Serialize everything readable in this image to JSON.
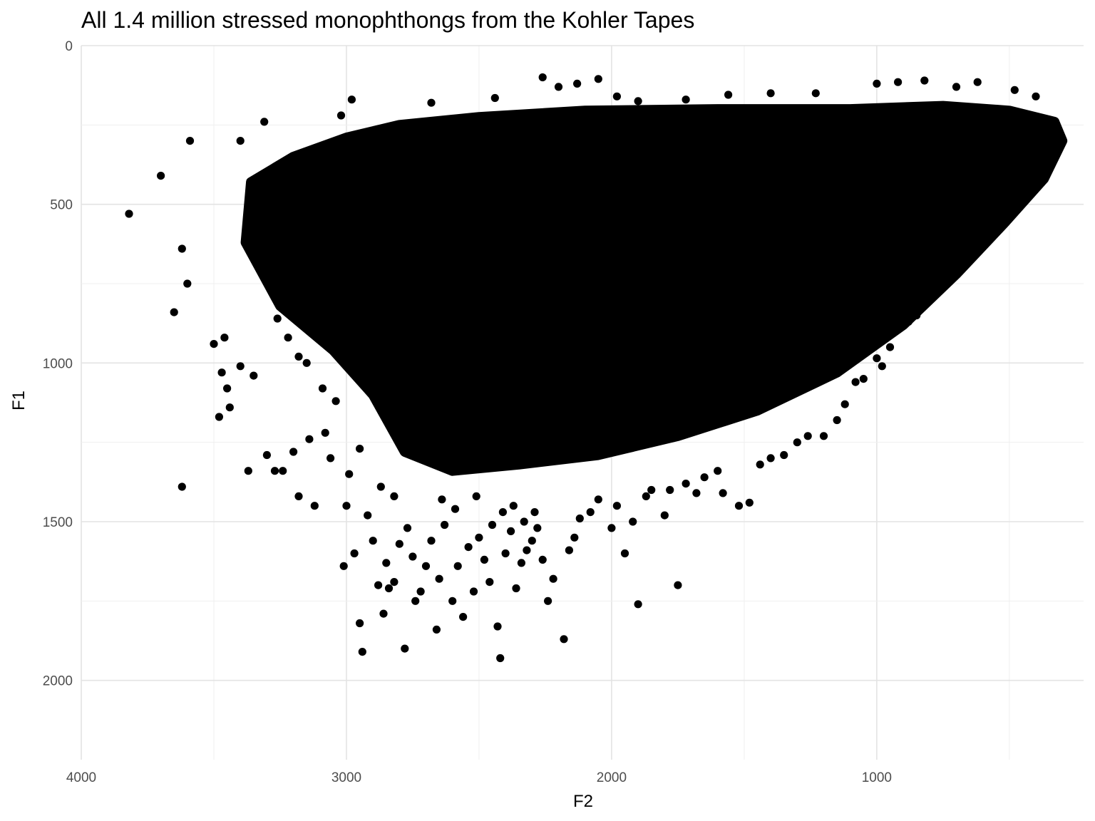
{
  "chart_data": {
    "type": "scatter",
    "title": "All 1.4 million stressed monophthongs from the Kohler Tapes",
    "xlabel": "F2",
    "ylabel": "F1",
    "x_reversed": true,
    "y_reversed": true,
    "xlim": [
      4000,
      220
    ],
    "ylim": [
      0,
      2250
    ],
    "x_ticks": [
      4000,
      3000,
      2000,
      1000
    ],
    "x_tick_labels": [
      "4000",
      "3000",
      "2000",
      "1000"
    ],
    "y_ticks": [
      0,
      500,
      1000,
      1500,
      2000
    ],
    "y_tick_labels": [
      "0",
      "500",
      "1000",
      "1500",
      "2000"
    ],
    "grid": true,
    "point_color": "#000000",
    "dense_region_outline": [
      [
        3360,
        430
      ],
      [
        3200,
        350
      ],
      [
        3000,
        290
      ],
      [
        2800,
        250
      ],
      [
        2500,
        225
      ],
      [
        2100,
        205
      ],
      [
        1600,
        200
      ],
      [
        1100,
        200
      ],
      [
        750,
        190
      ],
      [
        500,
        205
      ],
      [
        330,
        240
      ],
      [
        300,
        300
      ],
      [
        370,
        420
      ],
      [
        520,
        560
      ],
      [
        700,
        720
      ],
      [
        900,
        880
      ],
      [
        1150,
        1030
      ],
      [
        1450,
        1150
      ],
      [
        1750,
        1230
      ],
      [
        2050,
        1290
      ],
      [
        2350,
        1320
      ],
      [
        2600,
        1340
      ],
      [
        2780,
        1280
      ],
      [
        2900,
        1100
      ],
      [
        3050,
        960
      ],
      [
        3250,
        820
      ],
      [
        3380,
        620
      ]
    ],
    "points": [
      [
        3820,
        530
      ],
      [
        3700,
        410
      ],
      [
        3650,
        840
      ],
      [
        3620,
        1390
      ],
      [
        3620,
        640
      ],
      [
        3600,
        750
      ],
      [
        3590,
        300
      ],
      [
        3500,
        940
      ],
      [
        3480,
        1170
      ],
      [
        3470,
        1030
      ],
      [
        3460,
        920
      ],
      [
        3450,
        1080
      ],
      [
        3440,
        1140
      ],
      [
        3400,
        1010
      ],
      [
        3370,
        1340
      ],
      [
        3350,
        1040
      ],
      [
        3300,
        1290
      ],
      [
        3270,
        1340
      ],
      [
        3240,
        1340
      ],
      [
        3200,
        1280
      ],
      [
        3180,
        1420
      ],
      [
        3140,
        1240
      ],
      [
        3120,
        1450
      ],
      [
        3080,
        1220
      ],
      [
        3060,
        1300
      ],
      [
        3040,
        1120
      ],
      [
        3010,
        1640
      ],
      [
        3000,
        1450
      ],
      [
        2990,
        1350
      ],
      [
        2970,
        1600
      ],
      [
        2950,
        1820
      ],
      [
        2950,
        1270
      ],
      [
        2940,
        1910
      ],
      [
        2920,
        1480
      ],
      [
        2900,
        1560
      ],
      [
        2880,
        1700
      ],
      [
        2860,
        1790
      ],
      [
        2850,
        1630
      ],
      [
        2840,
        1710
      ],
      [
        2820,
        1690
      ],
      [
        2800,
        1570
      ],
      [
        2780,
        1900
      ],
      [
        2770,
        1520
      ],
      [
        2750,
        1610
      ],
      [
        2740,
        1750
      ],
      [
        2720,
        1720
      ],
      [
        2700,
        1640
      ],
      [
        2680,
        1560
      ],
      [
        2660,
        1840
      ],
      [
        2650,
        1680
      ],
      [
        2630,
        1510
      ],
      [
        2600,
        1750
      ],
      [
        2580,
        1640
      ],
      [
        2560,
        1800
      ],
      [
        2540,
        1580
      ],
      [
        2520,
        1720
      ],
      [
        2500,
        1550
      ],
      [
        2480,
        1620
      ],
      [
        2460,
        1690
      ],
      [
        2430,
        1830
      ],
      [
        2420,
        1930
      ],
      [
        2400,
        1600
      ],
      [
        2380,
        1530
      ],
      [
        2360,
        1710
      ],
      [
        2340,
        1630
      ],
      [
        2320,
        1590
      ],
      [
        2300,
        1560
      ],
      [
        2280,
        1520
      ],
      [
        2260,
        1620
      ],
      [
        2240,
        1750
      ],
      [
        2220,
        1680
      ],
      [
        2180,
        1870
      ],
      [
        2160,
        1590
      ],
      [
        2140,
        1550
      ],
      [
        2120,
        1490
      ],
      [
        2080,
        1470
      ],
      [
        2050,
        1430
      ],
      [
        2000,
        1520
      ],
      [
        1980,
        1450
      ],
      [
        1950,
        1600
      ],
      [
        1920,
        1500
      ],
      [
        1900,
        1760
      ],
      [
        1870,
        1420
      ],
      [
        1850,
        1400
      ],
      [
        1800,
        1480
      ],
      [
        1780,
        1400
      ],
      [
        1750,
        1700
      ],
      [
        1720,
        1380
      ],
      [
        1680,
        1410
      ],
      [
        1650,
        1360
      ],
      [
        1600,
        1340
      ],
      [
        1580,
        1410
      ],
      [
        1520,
        1450
      ],
      [
        1480,
        1440
      ],
      [
        1440,
        1320
      ],
      [
        1400,
        1300
      ],
      [
        1350,
        1290
      ],
      [
        1300,
        1250
      ],
      [
        1260,
        1230
      ],
      [
        1200,
        1230
      ],
      [
        1150,
        1180
      ],
      [
        1120,
        1130
      ],
      [
        1080,
        1060
      ],
      [
        1050,
        1050
      ],
      [
        1000,
        985
      ],
      [
        980,
        1010
      ],
      [
        950,
        950
      ],
      [
        920,
        880
      ],
      [
        880,
        870
      ],
      [
        850,
        850
      ],
      [
        820,
        780
      ],
      [
        780,
        760
      ],
      [
        750,
        720
      ],
      [
        700,
        680
      ],
      [
        650,
        640
      ],
      [
        620,
        600
      ],
      [
        580,
        560
      ],
      [
        550,
        540
      ],
      [
        500,
        500
      ],
      [
        480,
        470
      ],
      [
        460,
        390
      ],
      [
        430,
        340
      ],
      [
        400,
        300
      ],
      [
        380,
        265
      ],
      [
        350,
        320
      ],
      [
        3020,
        220
      ],
      [
        2980,
        170
      ],
      [
        2680,
        180
      ],
      [
        2440,
        165
      ],
      [
        2260,
        100
      ],
      [
        2200,
        130
      ],
      [
        2130,
        120
      ],
      [
        2050,
        105
      ],
      [
        1980,
        160
      ],
      [
        1900,
        175
      ],
      [
        1720,
        170
      ],
      [
        1560,
        155
      ],
      [
        1400,
        150
      ],
      [
        1230,
        150
      ],
      [
        1000,
        120
      ],
      [
        920,
        115
      ],
      [
        820,
        110
      ],
      [
        700,
        130
      ],
      [
        620,
        115
      ],
      [
        480,
        140
      ],
      [
        400,
        160
      ],
      [
        3310,
        240
      ],
      [
        3400,
        300
      ],
      [
        3350,
        480
      ],
      [
        3300,
        720
      ],
      [
        3260,
        860
      ],
      [
        3220,
        920
      ],
      [
        3180,
        980
      ],
      [
        3150,
        1000
      ],
      [
        3090,
        1080
      ],
      [
        2870,
        1390
      ],
      [
        2820,
        1420
      ],
      [
        2640,
        1430
      ],
      [
        2590,
        1460
      ],
      [
        2510,
        1420
      ],
      [
        2450,
        1510
      ],
      [
        2410,
        1470
      ],
      [
        2370,
        1450
      ],
      [
        2330,
        1500
      ],
      [
        2290,
        1470
      ]
    ]
  }
}
